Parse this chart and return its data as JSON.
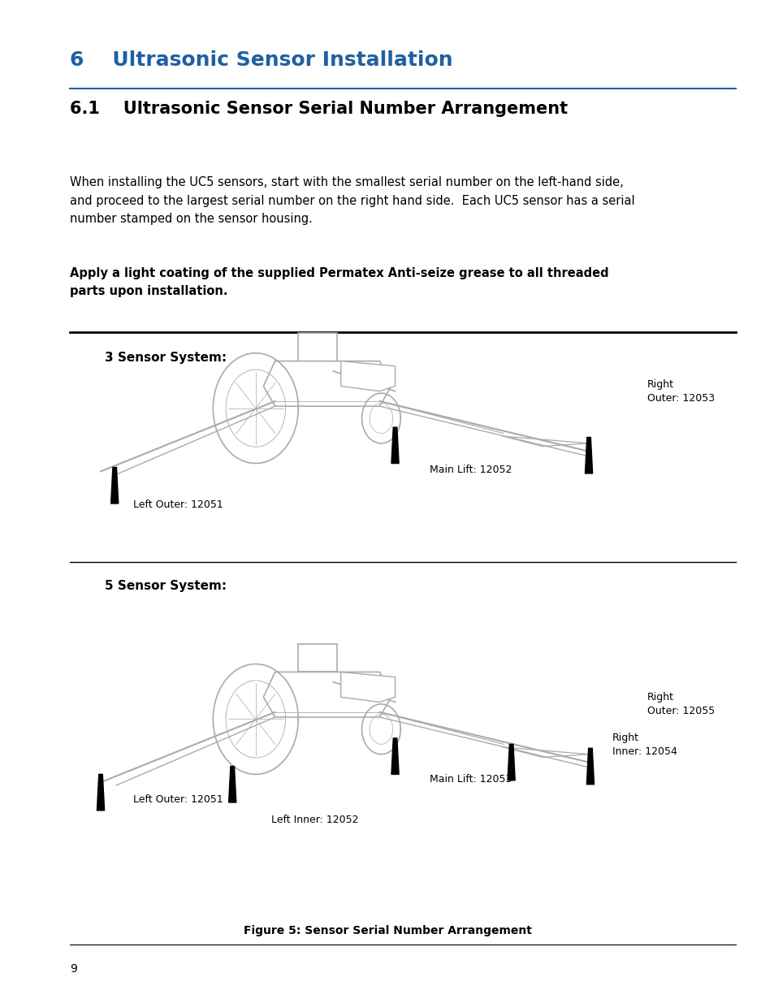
{
  "page_bg": "#ffffff",
  "heading1_text": "6    Ultrasonic Sensor Installation",
  "heading1_color": "#2060a0",
  "heading1_fontsize": 18,
  "heading2_text": "6.1    Ultrasonic Sensor Serial Number Arrangement",
  "heading2_fontsize": 15,
  "body_text": "When installing the UC5 sensors, start with the smallest serial number on the left-hand side,\nand proceed to the largest serial number on the right hand side.  Each UC5 sensor has a serial\nnumber stamped on the sensor housing.",
  "body_fontsize": 10.5,
  "bold_text": "Apply a light coating of the supplied Permatex Anti-seize grease to all threaded\nparts upon installation.",
  "bold_fontsize": 10.5,
  "section1_label": "3 Sensor System:",
  "section2_label": "5 Sensor System:",
  "section_fontsize": 11,
  "figure_caption": "Figure 5: Sensor Serial Number Arrangement",
  "page_number": "9",
  "label_fontsize": 9,
  "tractor_color": "#aaaaaa",
  "sensor_color": "#000000"
}
